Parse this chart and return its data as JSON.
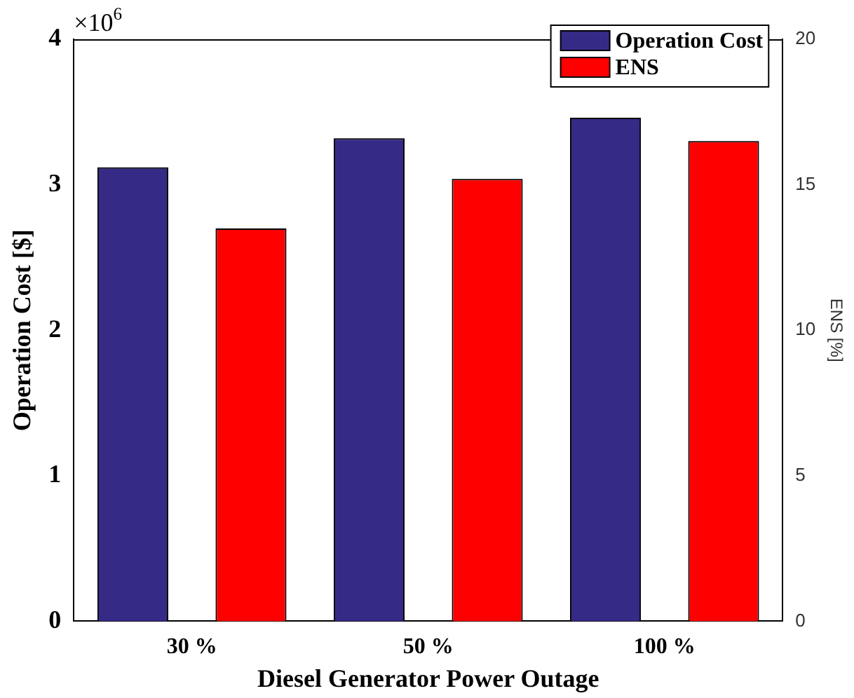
{
  "chart_data": {
    "type": "bar",
    "xlabel": "Diesel Generator Power Outage",
    "ylabel": "Operation Cost [$]",
    "y2label": "ENS [%]",
    "categories": [
      "30 %",
      "50 %",
      "100 %"
    ],
    "series": [
      {
        "name": "Operation Cost",
        "color": "#352b87",
        "values": [
          3.12,
          3.32,
          3.46
        ]
      },
      {
        "name": "ENS",
        "color": "#ff0000",
        "values": [
          13.5,
          15.2,
          16.5
        ],
        "axis": "y2"
      }
    ],
    "ylim": [
      0,
      4
    ],
    "yticks": [
      0,
      1,
      2,
      3,
      4
    ],
    "y2lim": [
      0,
      20
    ],
    "y2ticks": [
      0,
      5,
      10,
      15,
      20
    ],
    "annotations": [
      "×10$^{6}$"
    ],
    "legend": "top right",
    "grid": false
  }
}
